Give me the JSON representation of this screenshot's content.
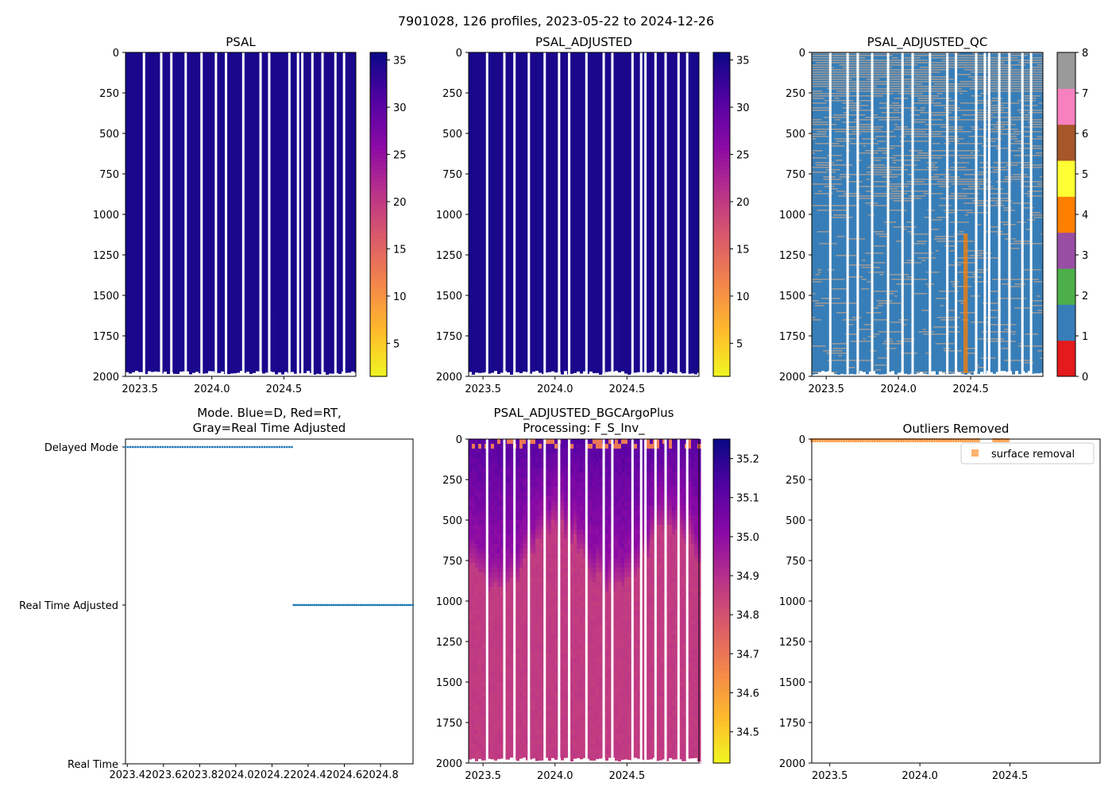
{
  "figure": {
    "suptitle": "7901028, 126 profiles, 2023-05-22 to 2024-12-26"
  },
  "chart_data": [
    {
      "id": "psal",
      "type": "heatmap",
      "title": "PSAL",
      "xlim": [
        2023.4,
        2025.0
      ],
      "ylim": [
        2000,
        0
      ],
      "xticks": [
        2023.5,
        2024.0,
        2024.5
      ],
      "xtick_labels": [
        "2023.5",
        "2024.0",
        "2024.5"
      ],
      "yticks": [
        0,
        250,
        500,
        750,
        1000,
        1250,
        1500,
        1750,
        2000
      ],
      "ytick_labels": [
        "0",
        "250",
        "500",
        "750",
        "1000",
        "1250",
        "1500",
        "1750",
        "2000"
      ],
      "field_value": 35.0,
      "colorbar": {
        "colormap": "plasma_r",
        "range": [
          1.5,
          35.8
        ],
        "ticks": [
          5,
          10,
          15,
          20,
          25,
          30,
          35
        ],
        "tick_labels": [
          "5",
          "10",
          "15",
          "20",
          "25",
          "30",
          "35"
        ]
      }
    },
    {
      "id": "psal_adj",
      "type": "heatmap",
      "title": "PSAL_ADJUSTED",
      "xlim": [
        2023.4,
        2025.0
      ],
      "ylim": [
        2000,
        0
      ],
      "xticks": [
        2023.5,
        2024.0,
        2024.5
      ],
      "xtick_labels": [
        "2023.5",
        "2024.0",
        "2024.5"
      ],
      "yticks": [
        0,
        250,
        500,
        750,
        1000,
        1250,
        1500,
        1750,
        2000
      ],
      "ytick_labels": [
        "0",
        "250",
        "500",
        "750",
        "1000",
        "1250",
        "1500",
        "1750",
        "2000"
      ],
      "field_value": 35.0,
      "colorbar": {
        "colormap": "plasma_r",
        "range": [
          1.5,
          35.8
        ],
        "ticks": [
          5,
          10,
          15,
          20,
          25,
          30,
          35
        ],
        "tick_labels": [
          "5",
          "10",
          "15",
          "20",
          "25",
          "30",
          "35"
        ]
      }
    },
    {
      "id": "qc",
      "type": "heatmap",
      "title": "PSAL_ADJUSTED_QC",
      "xlim": [
        2023.4,
        2025.0
      ],
      "ylim": [
        2000,
        0
      ],
      "xticks": [
        2023.5,
        2024.0,
        2024.5
      ],
      "xtick_labels": [
        "2023.5",
        "2024.0",
        "2024.5"
      ],
      "yticks": [
        0,
        250,
        500,
        750,
        1000,
        1250,
        1500,
        1750,
        2000
      ],
      "ytick_labels": [
        "0",
        "250",
        "500",
        "750",
        "1000",
        "1250",
        "1500",
        "1750",
        "2000"
      ],
      "flag_band": {
        "x_range": [
          2024.45,
          2024.48
        ],
        "depth_range": [
          1120,
          1980
        ],
        "flag": 4
      },
      "colorbar": {
        "colormap": "qc_flags",
        "range": [
          0,
          8
        ],
        "ticks": [
          0,
          1,
          2,
          3,
          4,
          5,
          6,
          7,
          8
        ],
        "tick_labels": [
          "0",
          "1",
          "2",
          "3",
          "4",
          "5",
          "6",
          "7",
          "8"
        ],
        "colors": [
          "#e41a1c",
          "#377eb8",
          "#4daf4a",
          "#984ea3",
          "#ff7f00",
          "#ffff33",
          "#a65628",
          "#f781bf",
          "#999999"
        ]
      }
    },
    {
      "id": "mode",
      "type": "scatter",
      "title_lines": [
        "Mode. Blue=D, Red=RT,",
        "Gray=Real Time Adjusted"
      ],
      "xlim": [
        2023.39,
        2024.98
      ],
      "xticks": [
        2023.4,
        2023.6,
        2023.8,
        2024.0,
        2024.2,
        2024.4,
        2024.6,
        2024.8
      ],
      "xtick_labels": [
        "2023.4",
        "2023.6",
        "2023.8",
        "2024.0",
        "2024.2",
        "2024.4",
        "2024.6",
        "2024.8"
      ],
      "ylim": [
        0,
        2
      ],
      "ycategories": [
        "Real Time",
        "Real Time Adjusted",
        "Delayed Mode"
      ],
      "series": [
        {
          "name": "Delayed Mode",
          "y": 2,
          "x_range": [
            2023.39,
            2024.31
          ],
          "count": 68
        },
        {
          "name": "Real Time Adjusted",
          "y": 1,
          "x_range": [
            2024.32,
            2024.98
          ],
          "count": 58
        }
      ],
      "color": "#1f77b4"
    },
    {
      "id": "bgc",
      "type": "heatmap",
      "title_lines": [
        "PSAL_ADJUSTED_BGCArgoPlus",
        "Processing: F_S_Inv_"
      ],
      "xlim": [
        2023.4,
        2025.0
      ],
      "ylim": [
        2000,
        0
      ],
      "xticks": [
        2023.5,
        2024.0,
        2024.5
      ],
      "xtick_labels": [
        "2023.5",
        "2024.0",
        "2024.5"
      ],
      "yticks": [
        0,
        250,
        500,
        750,
        1000,
        1250,
        1500,
        1750,
        2000
      ],
      "ytick_labels": [
        "0",
        "250",
        "500",
        "750",
        "1000",
        "1250",
        "1500",
        "1750",
        "2000"
      ],
      "colorbar": {
        "colormap": "plasma_r",
        "range": [
          34.42,
          35.25
        ],
        "ticks": [
          34.5,
          34.6,
          34.7,
          34.8,
          34.9,
          35.0,
          35.1,
          35.2
        ],
        "tick_labels": [
          "34.5",
          "34.6",
          "34.7",
          "34.8",
          "34.9",
          "35.0",
          "35.1",
          "35.2"
        ]
      }
    },
    {
      "id": "outliers",
      "type": "scatter",
      "title": "Outliers Removed",
      "xlim": [
        2023.4,
        2025.0
      ],
      "ylim": [
        2000,
        0
      ],
      "xticks": [
        2023.5,
        2024.0,
        2024.5
      ],
      "xtick_labels": [
        "2023.5",
        "2024.0",
        "2024.5"
      ],
      "yticks": [
        0,
        250,
        500,
        750,
        1000,
        1250,
        1500,
        1750,
        2000
      ],
      "ytick_labels": [
        "0",
        "250",
        "500",
        "750",
        "1000",
        "1250",
        "1500",
        "1750",
        "2000"
      ],
      "series": [
        {
          "name": "surface removal",
          "color": "#ff7f0e",
          "segments": [
            [
              2023.4,
              2024.33
            ],
            [
              2024.41,
              2024.5
            ]
          ],
          "depth": 4
        }
      ],
      "legend": {
        "label": "surface removal",
        "placement": "upper-right"
      }
    }
  ]
}
